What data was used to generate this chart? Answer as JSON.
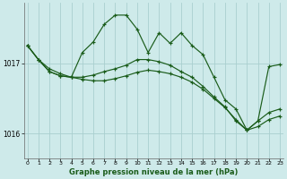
{
  "background_color": "#ceeaea",
  "grid_color": "#aacfcf",
  "line_color": "#1a5c1a",
  "marker_color": "#1a5c1a",
  "xlabel": "Graphe pression niveau de la mer (hPa)",
  "ylim": [
    1015.65,
    1017.85
  ],
  "yticks": [
    1016.0,
    1017.0
  ],
  "xlim": [
    -0.3,
    23.3
  ],
  "xticks": [
    0,
    1,
    2,
    3,
    4,
    5,
    6,
    7,
    8,
    9,
    10,
    11,
    12,
    13,
    14,
    15,
    16,
    17,
    18,
    19,
    20,
    21,
    22,
    23
  ],
  "series": [
    {
      "x": [
        0,
        1,
        2,
        3,
        4,
        5,
        6,
        7,
        8,
        9,
        10,
        11,
        12,
        13,
        14,
        15,
        16,
        17,
        18,
        19,
        20,
        21,
        22,
        23
      ],
      "y": [
        1017.25,
        1017.05,
        1016.88,
        1016.82,
        1016.8,
        1016.8,
        1016.83,
        1016.88,
        1016.92,
        1016.97,
        1017.05,
        1017.05,
        1017.02,
        1016.97,
        1016.88,
        1016.8,
        1016.67,
        1016.52,
        1016.38,
        1016.18,
        1016.05,
        1016.18,
        1016.3,
        1016.35
      ]
    },
    {
      "x": [
        0,
        1,
        2,
        3,
        4,
        5,
        6,
        7,
        8,
        9,
        10,
        11,
        12,
        13,
        14,
        15,
        16,
        17,
        18,
        19,
        20,
        21,
        22,
        23
      ],
      "y": [
        1017.25,
        1017.05,
        1016.88,
        1016.82,
        1016.8,
        1017.15,
        1017.3,
        1017.55,
        1017.68,
        1017.68,
        1017.48,
        1017.15,
        1017.43,
        1017.28,
        1017.43,
        1017.25,
        1017.12,
        1016.8,
        1016.48,
        1016.35,
        1016.05,
        1016.18,
        1016.95,
        1016.98
      ]
    },
    {
      "x": [
        0,
        1,
        2,
        3,
        4,
        5,
        6,
        7,
        8,
        9,
        10,
        11,
        12,
        13,
        14,
        15,
        16,
        17,
        18,
        19,
        20,
        21,
        22,
        23
      ],
      "y": [
        1017.25,
        1017.05,
        1016.92,
        1016.85,
        1016.8,
        1016.77,
        1016.75,
        1016.75,
        1016.78,
        1016.82,
        1016.87,
        1016.9,
        1016.88,
        1016.85,
        1016.8,
        1016.73,
        1016.63,
        1016.5,
        1016.37,
        1016.2,
        1016.05,
        1016.1,
        1016.2,
        1016.25
      ]
    }
  ]
}
